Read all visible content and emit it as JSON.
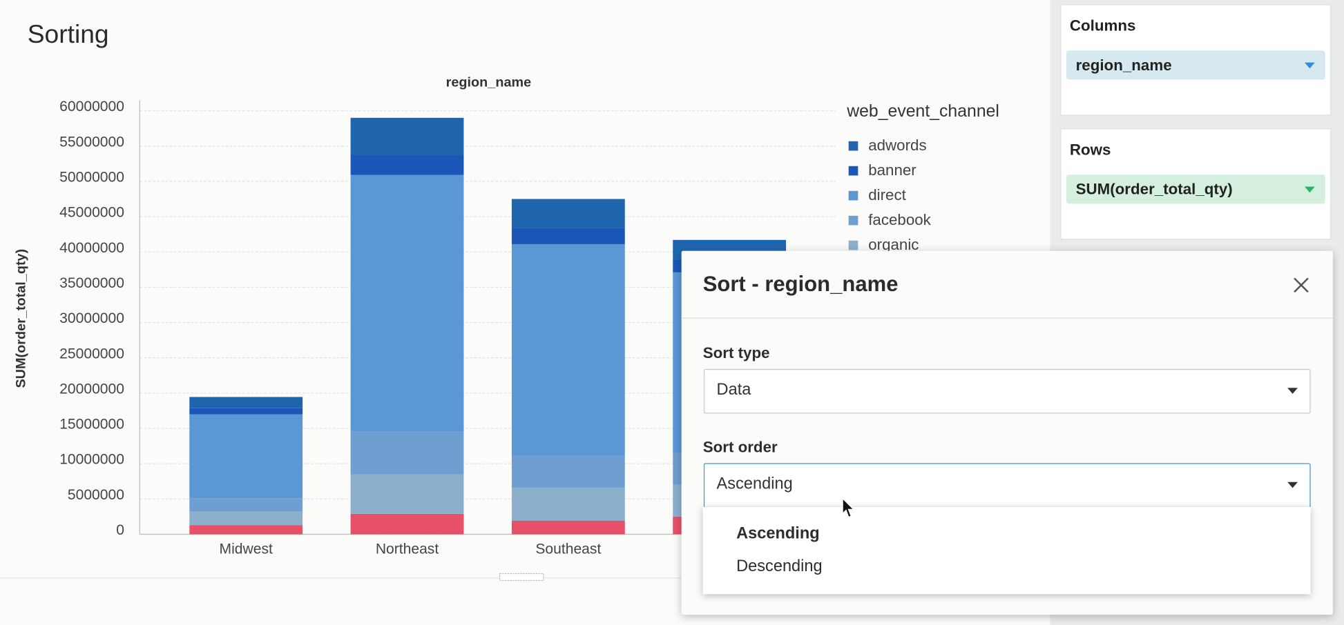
{
  "page": {
    "title": "Sorting"
  },
  "chart_data": {
    "type": "bar",
    "stacked": true,
    "title": "region_name",
    "y_label": "SUM(order_total_qty)",
    "legend_title": "web_event_channel",
    "legend_position": "right",
    "grid": true,
    "categories": [
      "Midwest",
      "Northeast",
      "Southeast",
      null
    ],
    "ylim": [
      0,
      61500000
    ],
    "yticks": [
      0,
      5000000,
      10000000,
      15000000,
      20000000,
      25000000,
      30000000,
      35000000,
      40000000,
      45000000,
      50000000,
      55000000,
      60000000
    ],
    "series": [
      {
        "name": null,
        "color": "#e8506a",
        "values": [
          1300000,
          2900000,
          1900000,
          2500000
        ]
      },
      {
        "name": "organic",
        "color": "#8cb0cc",
        "values": [
          1900000,
          5600000,
          4700000,
          4500000
        ]
      },
      {
        "name": "facebook",
        "color": "#6e9fd0",
        "values": [
          1900000,
          6100000,
          4500000,
          4500000
        ]
      },
      {
        "name": "direct",
        "color": "#5b97d4",
        "values": [
          11900000,
          36300000,
          30000000,
          25600000
        ]
      },
      {
        "name": "banner",
        "color": "#1a57b8",
        "values": [
          850000,
          2800000,
          2300000,
          1800000
        ]
      },
      {
        "name": "adwords",
        "color": "#1f65ad",
        "values": [
          1600000,
          5300000,
          4100000,
          2800000
        ]
      }
    ]
  },
  "sidebar": {
    "columns": {
      "title": "Columns",
      "field": "region_name"
    },
    "rows": {
      "title": "Rows",
      "field": "SUM(order_total_qty)"
    }
  },
  "dialog": {
    "title": "Sort - region_name",
    "sort_type": {
      "label": "Sort type",
      "value": "Data"
    },
    "sort_order": {
      "label": "Sort order",
      "value": "Ascending",
      "options": [
        "Ascending",
        "Descending"
      ]
    }
  }
}
